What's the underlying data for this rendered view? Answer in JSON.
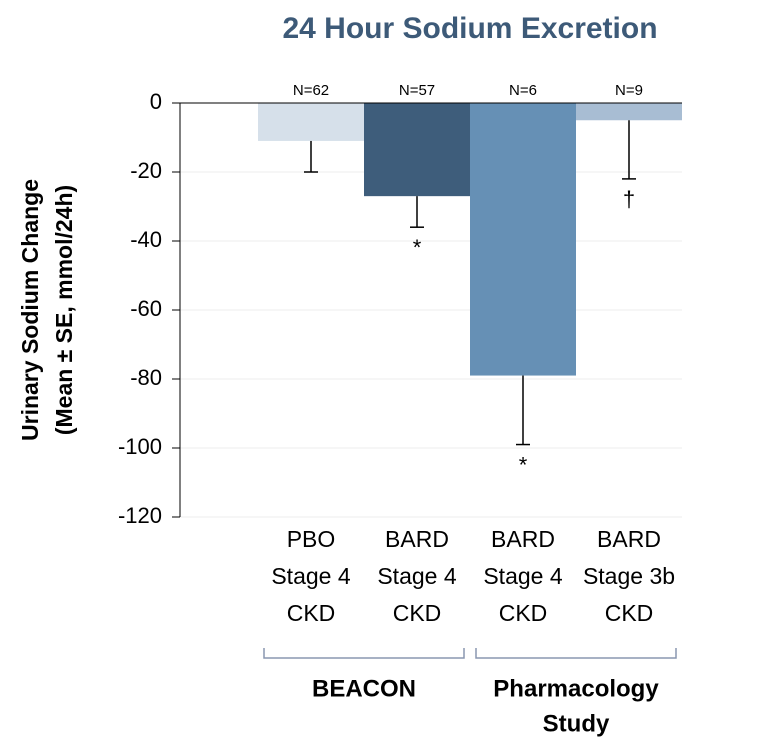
{
  "chart_data": {
    "type": "bar",
    "title": "24 Hour Sodium Excretion",
    "y_label": [
      "Urinary Sodium Change",
      "(Mean ± SE, mmol/24h)"
    ],
    "categories": [
      [
        "PBO",
        "Stage 4",
        "CKD"
      ],
      [
        "BARD",
        "Stage 4",
        "CKD"
      ],
      [
        "BARD",
        "Stage 4",
        "CKD"
      ],
      [
        "BARD",
        "Stage 3b",
        "CKD"
      ]
    ],
    "values": [
      -11,
      -27,
      -79,
      -5
    ],
    "errors": [
      9,
      9,
      20,
      17
    ],
    "colors": [
      "#d6e0ea",
      "#3e5d7b",
      "#6690b5",
      "#a8bdd3"
    ],
    "n_labels": [
      "N=62",
      "N=57",
      "N=6",
      "N=9"
    ],
    "annotations": [
      null,
      "*",
      "*",
      "†"
    ],
    "groups": [
      {
        "label": [
          "BEACON"
        ],
        "count": 2
      },
      {
        "label": [
          "Pharmacology",
          "Study"
        ],
        "count": 2
      }
    ],
    "ylim": [
      -120,
      0
    ],
    "yticks": [
      0,
      -20,
      -40,
      -60,
      -80,
      -100,
      -120
    ],
    "grid": true
  }
}
